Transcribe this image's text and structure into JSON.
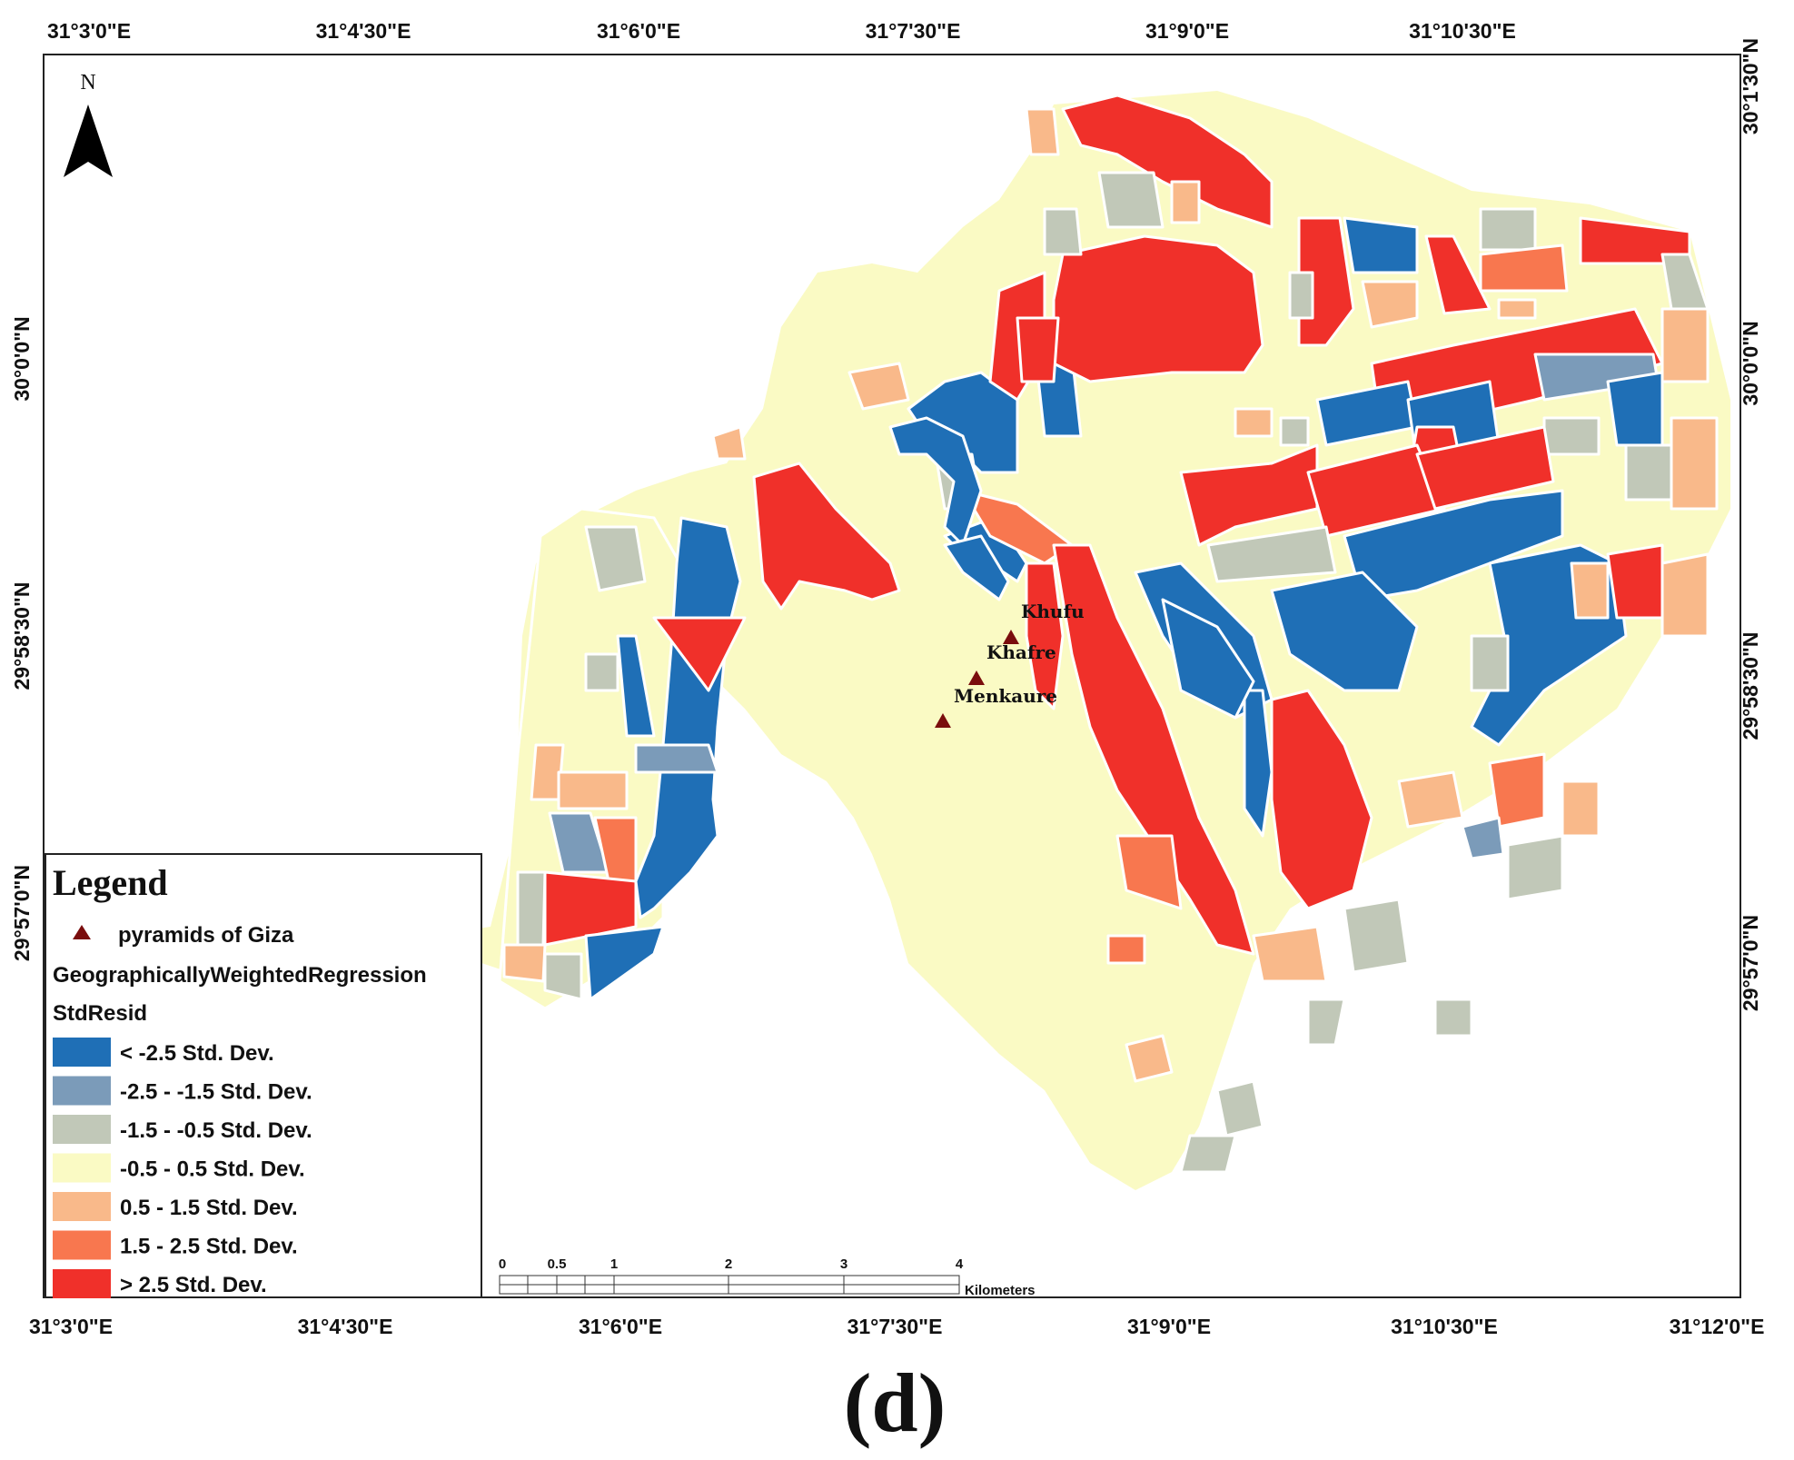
{
  "map": {
    "north_label": "N",
    "top_lon_labels": [
      "31°3'0\"E",
      "31°4'30\"E",
      "31°6'0\"E",
      "31°7'30\"E",
      "31°9'0\"E",
      "31°10'30\"E"
    ],
    "bottom_lon_labels": [
      "31°3'0\"E",
      "31°4'30\"E",
      "31°6'0\"E",
      "31°7'30\"E",
      "31°9'0\"E",
      "31°10'30\"E",
      "31°12'0\"E"
    ],
    "left_lat_labels": [
      "30°0'0\"N",
      "29°58'30\"N",
      "29°57'0\"N"
    ],
    "right_lat_labels": [
      "30°1'30\"N",
      "30°0'0\"N",
      "29°58'30\"N",
      "29°57'0\"N"
    ],
    "pyramids": [
      {
        "name": "Khufu"
      },
      {
        "name": "Khafre"
      },
      {
        "name": "Menkaure"
      }
    ]
  },
  "legend": {
    "title": "Legend",
    "point_layer": "pyramids of Giza",
    "layer_name": "GeographicallyWeightedRegression",
    "field": "StdResid",
    "classes": [
      {
        "label": "< -2.5 Std. Dev.",
        "color": "#1f6fb6"
      },
      {
        "label": "-2.5 - -1.5 Std. Dev.",
        "color": "#7b9bb9"
      },
      {
        "label": "-1.5 - -0.5 Std. Dev.",
        "color": "#c1c8b8"
      },
      {
        "label": "-0.5 - 0.5 Std. Dev.",
        "color": "#fafac4"
      },
      {
        "label": "0.5 - 1.5 Std. Dev.",
        "color": "#f9b98a"
      },
      {
        "label": "1.5 - 2.5 Std. Dev.",
        "color": "#f8774f"
      },
      {
        "label": "> 2.5 Std. Dev.",
        "color": "#f0302a"
      }
    ]
  },
  "scale_bar": {
    "ticks": [
      "0",
      "0.5",
      "1",
      "2",
      "3",
      "4"
    ],
    "unit": "Kilometers"
  },
  "caption": "(d)"
}
